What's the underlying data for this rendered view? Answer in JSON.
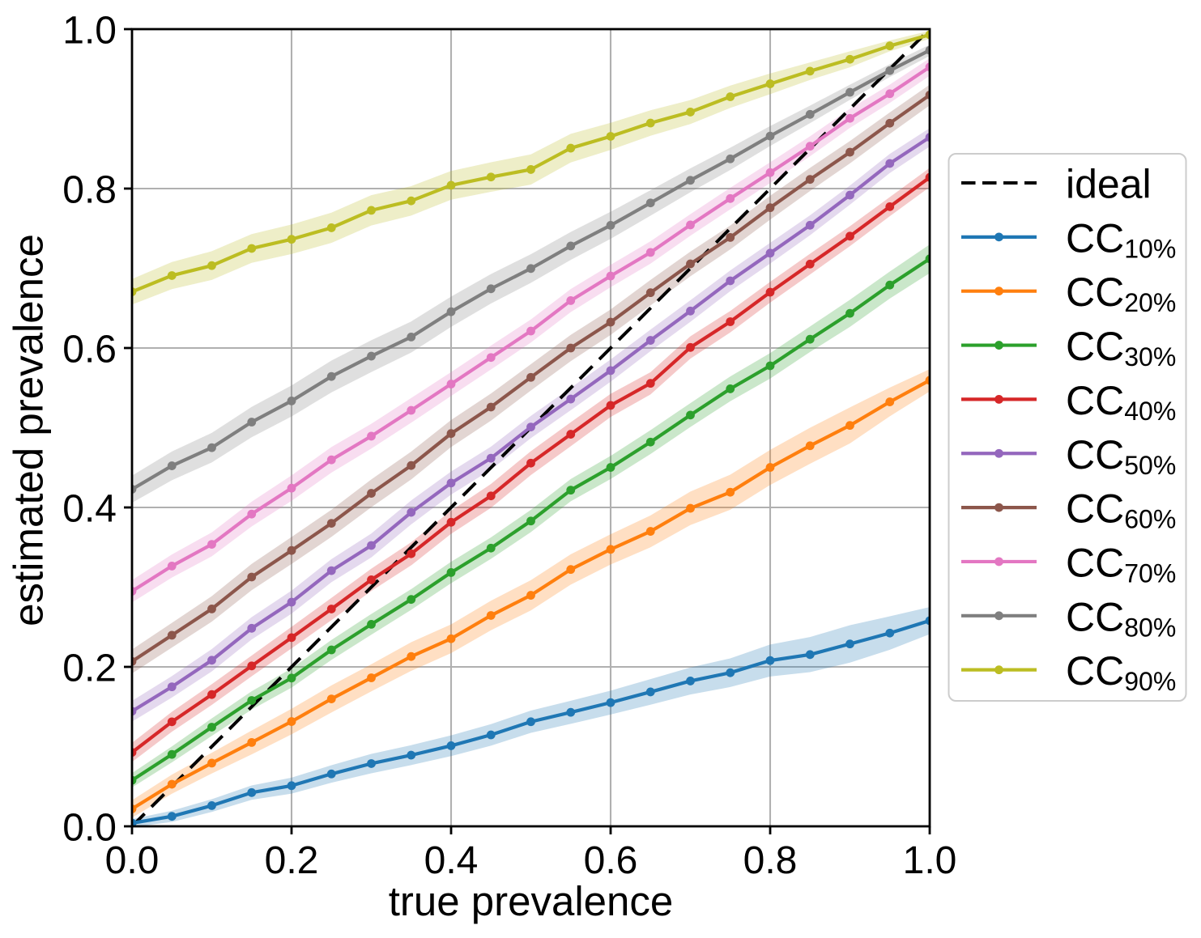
{
  "chart_data": {
    "type": "line",
    "xlabel": "true prevalence",
    "ylabel": "estimated prevalence",
    "x": [
      0.0,
      0.05,
      0.1,
      0.15,
      0.2,
      0.25,
      0.3,
      0.35,
      0.4,
      0.45,
      0.5,
      0.55,
      0.6,
      0.65,
      0.7,
      0.75,
      0.8,
      0.85,
      0.9,
      0.95,
      1.0
    ],
    "xlim": [
      0.0,
      1.0
    ],
    "ylim": [
      0.0,
      1.0
    ],
    "xticks": [
      0.0,
      0.2,
      0.4,
      0.6,
      0.8,
      1.0
    ],
    "yticks": [
      0.0,
      0.2,
      0.4,
      0.6,
      0.8,
      1.0
    ],
    "xtick_labels": [
      "0.0",
      "0.2",
      "0.4",
      "0.6",
      "0.8",
      "1.0"
    ],
    "ytick_labels": [
      "0.0",
      "0.2",
      "0.4",
      "0.6",
      "0.8",
      "1.0"
    ],
    "grid": true,
    "grid_color": "#b0b0b0",
    "background": "#ffffff",
    "legend_position": "upper right outside",
    "ideal": {
      "label": "ideal",
      "color": "#000000",
      "style": "dashed",
      "from": [
        0.0,
        0.0
      ],
      "to": [
        1.0,
        1.0
      ]
    },
    "series": [
      {
        "name": "CC10",
        "label_main": "CC",
        "label_sub": "10%",
        "color": "#1f77b4",
        "values": [
          0.004,
          0.0125,
          0.026,
          0.0423,
          0.051,
          0.0657,
          0.0787,
          0.0893,
          0.1011,
          0.1147,
          0.1312,
          0.143,
          0.1552,
          0.1686,
          0.1823,
          0.1927,
          0.208,
          0.2154,
          0.2288,
          0.2424,
          0.258
        ],
        "band": [
          0.005,
          0.007,
          0.008,
          0.009,
          0.01,
          0.011,
          0.0122,
          0.0125,
          0.013,
          0.0135,
          0.014,
          0.0145,
          0.015,
          0.016,
          0.017,
          0.018,
          0.02,
          0.022,
          0.0235,
          0.021,
          0.017
        ]
      },
      {
        "name": "CC20",
        "label_main": "CC",
        "label_sub": "20%",
        "color": "#ff7f0e",
        "values": [
          0.0218,
          0.0528,
          0.0793,
          0.1052,
          0.1314,
          0.1598,
          0.1863,
          0.213,
          0.2353,
          0.2645,
          0.2898,
          0.3222,
          0.3474,
          0.37,
          0.3989,
          0.4191,
          0.4502,
          0.4774,
          0.5029,
          0.5324,
          0.5595
        ],
        "band": [
          0.011,
          0.012,
          0.013,
          0.015,
          0.016,
          0.017,
          0.017,
          0.018,
          0.018,
          0.0185,
          0.019,
          0.019,
          0.019,
          0.02,
          0.021,
          0.022,
          0.022,
          0.0226,
          0.0226,
          0.018,
          0.014
        ]
      },
      {
        "name": "CC30",
        "label_main": "CC",
        "label_sub": "30%",
        "color": "#2ca02c",
        "values": [
          0.0577,
          0.0902,
          0.1244,
          0.1579,
          0.186,
          0.2213,
          0.2534,
          0.2846,
          0.3184,
          0.349,
          0.383,
          0.4217,
          0.4502,
          0.482,
          0.5159,
          0.5488,
          0.5777,
          0.611,
          0.6435,
          0.679,
          0.7119
        ],
        "band": [
          0.009,
          0.01,
          0.011,
          0.0115,
          0.012,
          0.0125,
          0.013,
          0.013,
          0.0135,
          0.0135,
          0.014,
          0.014,
          0.0145,
          0.015,
          0.015,
          0.0155,
          0.016,
          0.016,
          0.017,
          0.017,
          0.018
        ]
      },
      {
        "name": "CC40",
        "label_main": "CC",
        "label_sub": "40%",
        "color": "#d62728",
        "values": [
          0.0927,
          0.1311,
          0.1653,
          0.2012,
          0.2367,
          0.2726,
          0.3092,
          0.3419,
          0.3814,
          0.4145,
          0.4556,
          0.4918,
          0.528,
          0.5557,
          0.6007,
          0.633,
          0.67,
          0.7053,
          0.7403,
          0.7773,
          0.814
        ],
        "band": [
          0.012,
          0.0125,
          0.013,
          0.013,
          0.0135,
          0.014,
          0.014,
          0.0145,
          0.0145,
          0.015,
          0.015,
          0.015,
          0.0145,
          0.014,
          0.014,
          0.0135,
          0.013,
          0.013,
          0.0125,
          0.012,
          0.012
        ]
      },
      {
        "name": "CC50",
        "label_main": "CC",
        "label_sub": "50%",
        "color": "#9467bd",
        "values": [
          0.1443,
          0.175,
          0.2083,
          0.2484,
          0.2812,
          0.3207,
          0.3523,
          0.3938,
          0.4306,
          0.4618,
          0.5009,
          0.536,
          0.5717,
          0.6096,
          0.6464,
          0.6843,
          0.719,
          0.754,
          0.7918,
          0.8315,
          0.8643
        ],
        "band": [
          0.013,
          0.0135,
          0.014,
          0.014,
          0.0145,
          0.0145,
          0.015,
          0.015,
          0.0145,
          0.0145,
          0.014,
          0.014,
          0.014,
          0.0135,
          0.0135,
          0.013,
          0.013,
          0.0125,
          0.012,
          0.012,
          0.0115
        ]
      },
      {
        "name": "CC60",
        "label_main": "CC",
        "label_sub": "60%",
        "color": "#8c564b",
        "values": [
          0.2068,
          0.2397,
          0.2727,
          0.3127,
          0.346,
          0.3801,
          0.4177,
          0.4526,
          0.4927,
          0.5259,
          0.5632,
          0.6,
          0.6324,
          0.6694,
          0.7055,
          0.7387,
          0.776,
          0.8115,
          0.8456,
          0.882,
          0.9174
        ],
        "band": [
          0.015,
          0.0155,
          0.016,
          0.0165,
          0.017,
          0.017,
          0.0175,
          0.0175,
          0.017,
          0.017,
          0.0165,
          0.0165,
          0.016,
          0.016,
          0.0155,
          0.015,
          0.015,
          0.0145,
          0.014,
          0.0135,
          0.013
        ]
      },
      {
        "name": "CC70",
        "label_main": "CC",
        "label_sub": "70%",
        "color": "#e377c2",
        "values": [
          0.2949,
          0.3265,
          0.3537,
          0.3917,
          0.4242,
          0.4597,
          0.4894,
          0.5218,
          0.5548,
          0.5881,
          0.6213,
          0.6595,
          0.6903,
          0.7199,
          0.7544,
          0.7875,
          0.82,
          0.8531,
          0.8881,
          0.919,
          0.9525
        ],
        "band": [
          0.014,
          0.0145,
          0.015,
          0.0155,
          0.016,
          0.016,
          0.0155,
          0.0155,
          0.015,
          0.015,
          0.0145,
          0.0145,
          0.014,
          0.014,
          0.0135,
          0.0135,
          0.013,
          0.0125,
          0.012,
          0.0115,
          0.011
        ]
      },
      {
        "name": "CC80",
        "label_main": "CC",
        "label_sub": "80%",
        "color": "#7f7f7f",
        "values": [
          0.4228,
          0.4522,
          0.475,
          0.5071,
          0.5336,
          0.5643,
          0.5898,
          0.6138,
          0.6455,
          0.6743,
          0.6997,
          0.728,
          0.7539,
          0.782,
          0.8104,
          0.8373,
          0.8659,
          0.8931,
          0.9208,
          0.948,
          0.9735
        ],
        "band": [
          0.017,
          0.018,
          0.0185,
          0.019,
          0.0195,
          0.02,
          0.02,
          0.0195,
          0.019,
          0.0185,
          0.018,
          0.0175,
          0.017,
          0.016,
          0.015,
          0.014,
          0.0125,
          0.011,
          0.0095,
          0.008,
          0.007
        ]
      },
      {
        "name": "CC90",
        "label_main": "CC",
        "label_sub": "90%",
        "color": "#bcbd22",
        "values": [
          0.6705,
          0.6909,
          0.7034,
          0.7249,
          0.7364,
          0.7508,
          0.7727,
          0.7846,
          0.8041,
          0.8145,
          0.8239,
          0.8507,
          0.8655,
          0.8822,
          0.896,
          0.9152,
          0.9314,
          0.9473,
          0.9622,
          0.979,
          0.993
        ],
        "band": [
          0.016,
          0.017,
          0.018,
          0.018,
          0.0185,
          0.019,
          0.019,
          0.0185,
          0.018,
          0.0185,
          0.019,
          0.018,
          0.017,
          0.016,
          0.015,
          0.014,
          0.013,
          0.011,
          0.01,
          0.0068,
          0.005
        ]
      }
    ]
  }
}
